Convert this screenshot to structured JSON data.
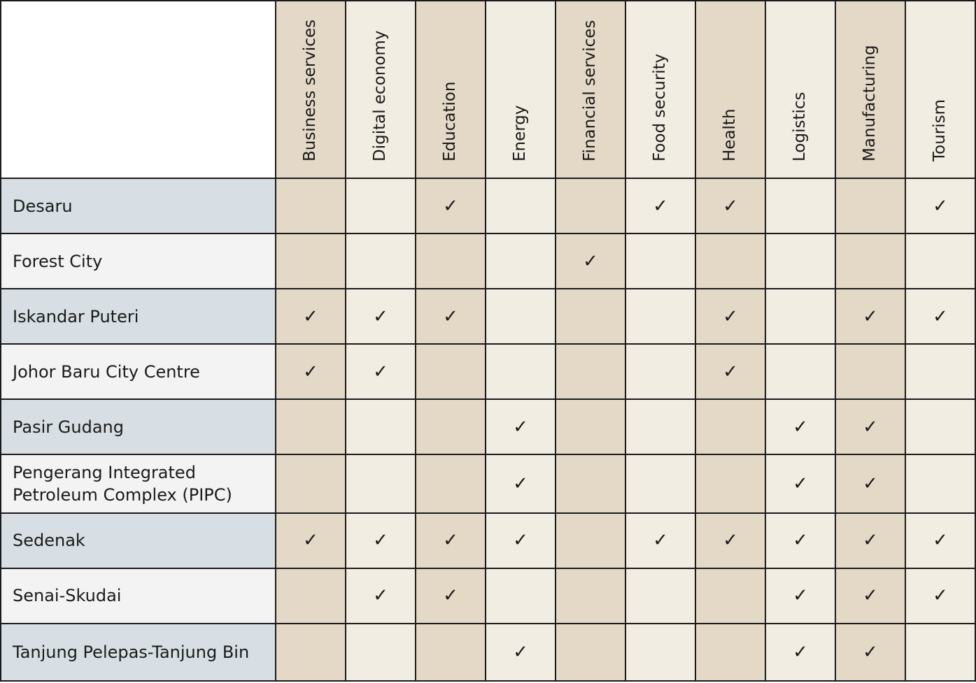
{
  "columns": [
    "Business services",
    "Digital economy",
    "Education",
    "Energy",
    "Financial services",
    "Food security",
    "Health",
    "Logistics",
    "Manufacturing",
    "Tourism"
  ],
  "check_symbol": "✓",
  "rows": [
    {
      "label": "Desaru",
      "checks": [
        false,
        false,
        true,
        false,
        false,
        true,
        true,
        false,
        false,
        true
      ]
    },
    {
      "label": "Forest City",
      "checks": [
        false,
        false,
        false,
        false,
        true,
        false,
        false,
        false,
        false,
        false
      ]
    },
    {
      "label": "Iskandar Puteri",
      "checks": [
        true,
        true,
        true,
        false,
        false,
        false,
        true,
        false,
        true,
        true
      ]
    },
    {
      "label": "Johor Baru City Centre",
      "checks": [
        true,
        true,
        false,
        false,
        false,
        false,
        true,
        false,
        false,
        false
      ]
    },
    {
      "label": "Pasir Gudang",
      "checks": [
        false,
        false,
        false,
        true,
        false,
        false,
        false,
        true,
        true,
        false
      ]
    },
    {
      "label": "Pengerang Integrated\nPetroleum Complex (PIPC)",
      "checks": [
        false,
        false,
        false,
        true,
        false,
        false,
        false,
        true,
        true,
        false
      ]
    },
    {
      "label": "Sedenak",
      "checks": [
        true,
        true,
        true,
        true,
        false,
        true,
        true,
        true,
        true,
        true
      ]
    },
    {
      "label": "Senai-Skudai",
      "checks": [
        false,
        true,
        true,
        false,
        false,
        false,
        false,
        true,
        true,
        true
      ]
    },
    {
      "label": "Tanjung Pelepas-Tanjung Bin",
      "checks": [
        false,
        false,
        false,
        true,
        false,
        false,
        false,
        true,
        true,
        false
      ]
    }
  ],
  "colors": {
    "row_label_odd": "#d7dfe4",
    "row_label_even": "#f3f3f3",
    "column_dark": "#e4d9c6",
    "column_light": "#f2ede2",
    "border": "#1a1a1a"
  }
}
